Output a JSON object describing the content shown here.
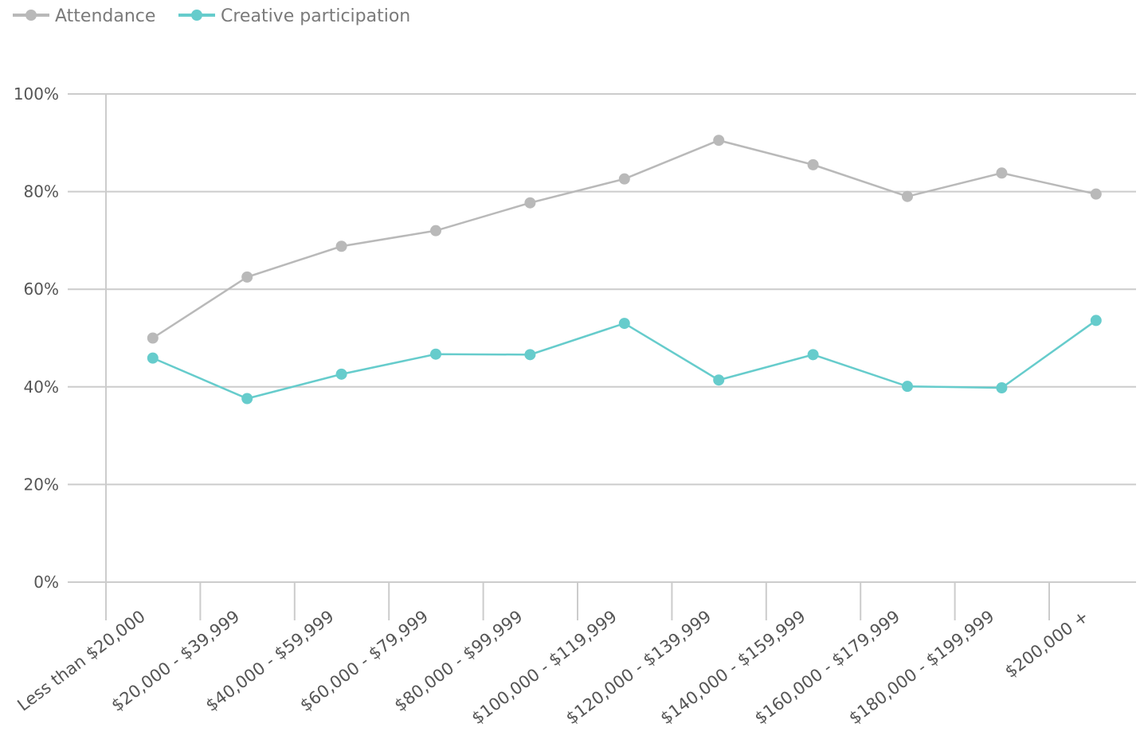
{
  "chart_data": {
    "type": "line",
    "categories": [
      "Less than $20,000",
      "$20,000 - $39,999",
      "$40,000 - $59,999",
      "$60,000 - $79,999",
      "$80,000 - $99,999",
      "$100,000 - $119,999",
      "$120,000 - $139,999",
      "$140,000 - $159,999",
      "$160,000 - $179,999",
      "$180,000 - $199,999",
      "$200,000 +"
    ],
    "series": [
      {
        "name": "Attendance",
        "color": "#b9b9b9",
        "values": [
          50,
          62.5,
          68.8,
          72,
          77.7,
          82.6,
          90.5,
          85.5,
          79,
          83.8,
          79.5
        ]
      },
      {
        "name": "Creative participation",
        "color": "#66cccc",
        "values": [
          45.9,
          37.6,
          42.6,
          46.7,
          46.6,
          53,
          41.4,
          46.6,
          40.1,
          39.8,
          53.6
        ]
      }
    ],
    "y_ticks": [
      "0%",
      "20%",
      "40%",
      "60%",
      "80%",
      "100%"
    ],
    "ylim": [
      0,
      100
    ],
    "title": "",
    "xlabel": "",
    "ylabel": "",
    "grid": true,
    "legend_position": "top-left"
  }
}
